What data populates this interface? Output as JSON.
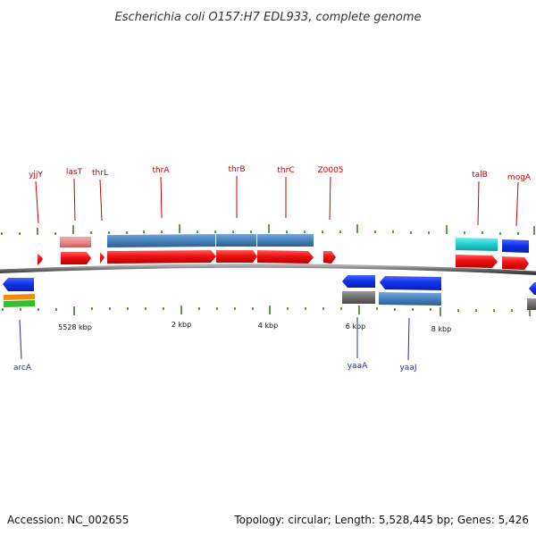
{
  "title": "Escherichia coli O157:H7 EDL933, complete genome",
  "footer": {
    "accession": "Accession: NC_002655",
    "summary": "Topology: circular; Length: 5,528,445 bp; Genes: 5,426"
  },
  "colors": {
    "forward_cds": "#ee1111",
    "reverse_cds": "#1133ee",
    "gene_bar": "#4a86c0",
    "forward_label": "#cc0000",
    "reverse_label": "#1a2fcc",
    "tick": "#2a7a10",
    "backbone": "#8a8a8a"
  },
  "scale_labels": [
    {
      "text": "5528 kbp"
    },
    {
      "text": "2 kbp"
    },
    {
      "text": "4 kbp"
    },
    {
      "text": "6 kbp"
    },
    {
      "text": "8 kbp"
    }
  ],
  "top_genes": [
    {
      "name": "yjjY"
    },
    {
      "name": "lasT"
    },
    {
      "name": "thrL"
    },
    {
      "name": "thrA"
    },
    {
      "name": "thrB"
    },
    {
      "name": "thrC"
    },
    {
      "name": "Z0005"
    },
    {
      "name": "talB"
    },
    {
      "name": "mogA"
    }
  ],
  "bottom_genes": [
    {
      "name": "arcA"
    },
    {
      "name": "yaaA"
    },
    {
      "name": "yaaJ"
    }
  ]
}
